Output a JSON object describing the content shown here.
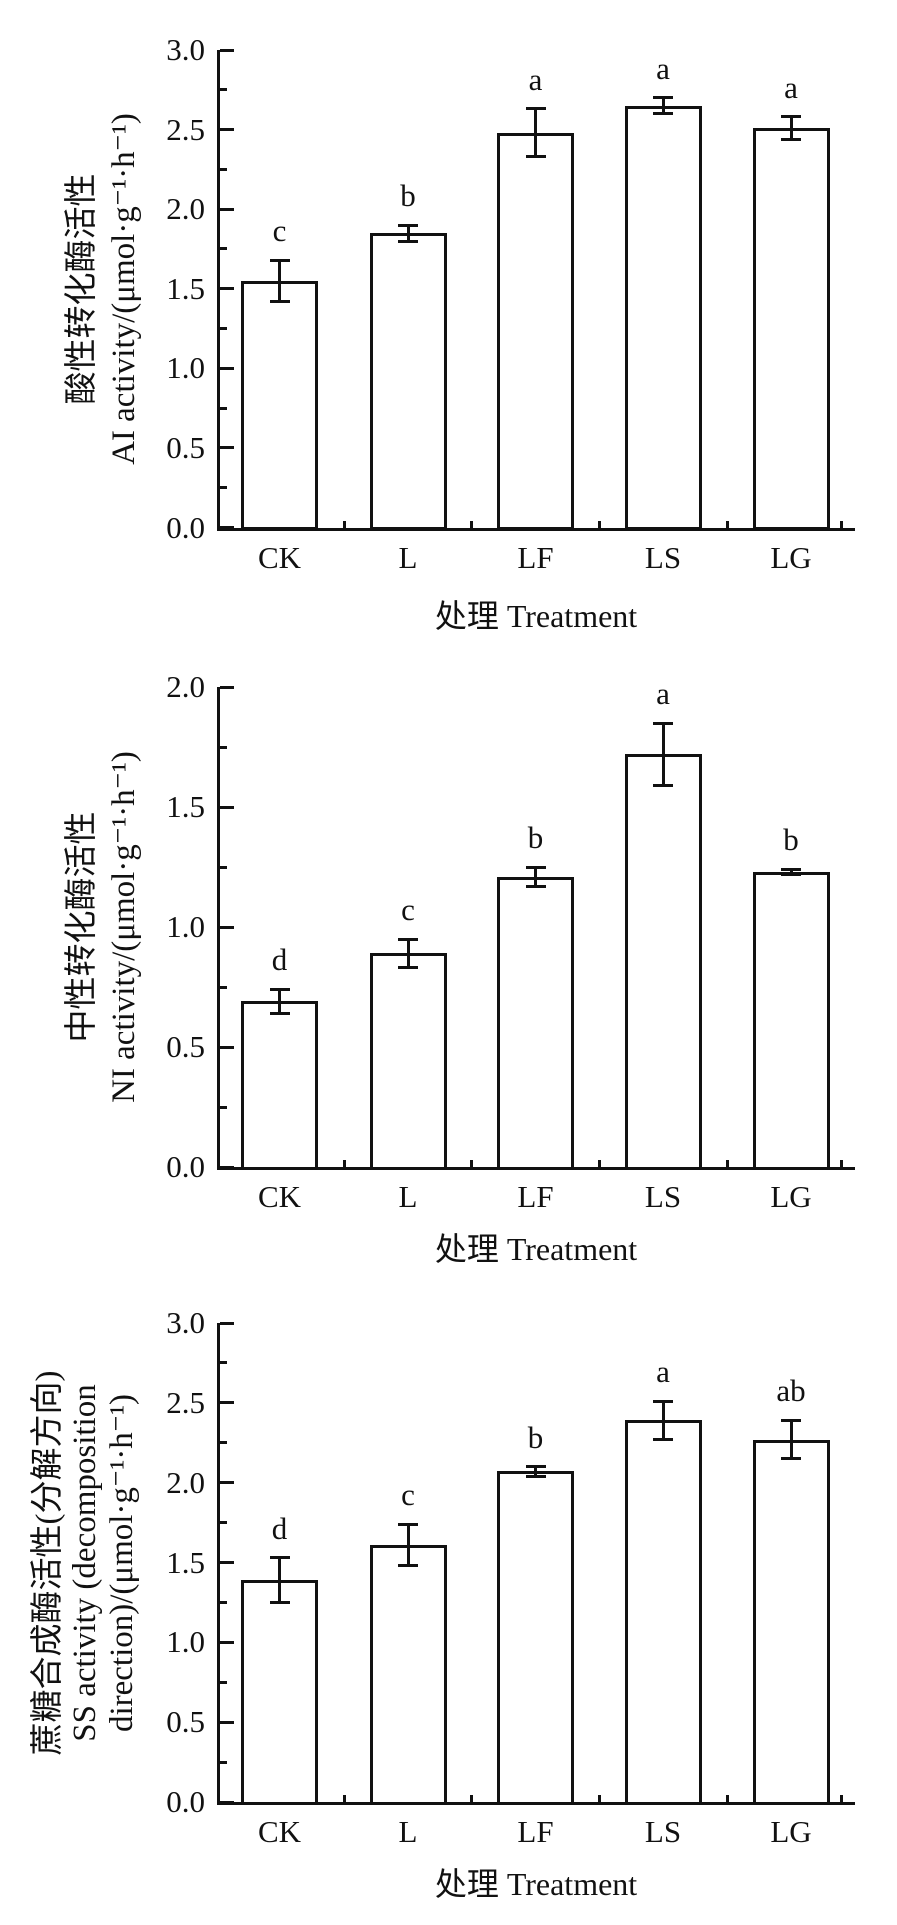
{
  "figure_background": "#ffffff",
  "ink_color": "#111111",
  "chart_data": [
    {
      "type": "bar",
      "panel": "top",
      "categories": [
        "CK",
        "L",
        "LF",
        "LS",
        "LG"
      ],
      "values": [
        1.55,
        1.85,
        2.48,
        2.65,
        2.51
      ],
      "errors": [
        0.13,
        0.05,
        0.15,
        0.05,
        0.07
      ],
      "sig_letters": [
        "c",
        "b",
        "a",
        "a",
        "a"
      ],
      "xlabel": "处理 Treatment",
      "ylabel_lines": [
        "酸性转化酶活性",
        "AI activity/(μmol·g⁻¹·h⁻¹)"
      ],
      "ylabel": "酸性转化酶活性 AI activity/(μmol·g⁻¹·h⁻¹)",
      "ylim": [
        0,
        3.0
      ],
      "ytick_step": 0.5,
      "yticks": [
        "0.0",
        "0.5",
        "1.0",
        "1.5",
        "2.0",
        "2.5",
        "3.0"
      ],
      "grid": "off",
      "legend": "none",
      "bar_fill": "#ffffff",
      "bar_border": "#111111"
    },
    {
      "type": "bar",
      "panel": "middle",
      "categories": [
        "CK",
        "L",
        "LF",
        "LS",
        "LG"
      ],
      "values": [
        0.69,
        0.89,
        1.21,
        1.72,
        1.23
      ],
      "errors": [
        0.05,
        0.06,
        0.04,
        0.13,
        0.01
      ],
      "sig_letters": [
        "d",
        "c",
        "b",
        "a",
        "b"
      ],
      "xlabel": "处理 Treatment",
      "ylabel_lines": [
        "中性转化酶活性",
        "NI activity/(μmol·g⁻¹·h⁻¹)"
      ],
      "ylabel": "中性转化酶活性 NI activity/(μmol·g⁻¹·h⁻¹)",
      "ylim": [
        0,
        2.0
      ],
      "ytick_step": 0.5,
      "yticks": [
        "0.0",
        "0.5",
        "1.0",
        "1.5",
        "2.0"
      ],
      "grid": "off",
      "legend": "none",
      "bar_fill": "#ffffff",
      "bar_border": "#111111"
    },
    {
      "type": "bar",
      "panel": "bottom",
      "categories": [
        "CK",
        "L",
        "LF",
        "LS",
        "LG"
      ],
      "values": [
        1.39,
        1.61,
        2.07,
        2.39,
        2.27
      ],
      "errors": [
        0.14,
        0.13,
        0.03,
        0.12,
        0.12
      ],
      "sig_letters": [
        "d",
        "c",
        "b",
        "a",
        "ab"
      ],
      "xlabel": "处理 Treatment",
      "ylabel_lines": [
        "蔗糖合成酶活性(分解方向)",
        "SS activity (decomposition",
        "direction)/(μmol·g⁻¹·h⁻¹)"
      ],
      "ylabel": "蔗糖合成酶活性(分解方向) SS activity (decomposition direction)/(μmol·g⁻¹·h⁻¹)",
      "ylim": [
        0,
        3.0
      ],
      "ytick_step": 0.5,
      "yticks": [
        "0.0",
        "0.5",
        "1.0",
        "1.5",
        "2.0",
        "2.5",
        "3.0"
      ],
      "grid": "off",
      "legend": "none",
      "bar_fill": "#ffffff",
      "bar_border": "#111111"
    }
  ]
}
